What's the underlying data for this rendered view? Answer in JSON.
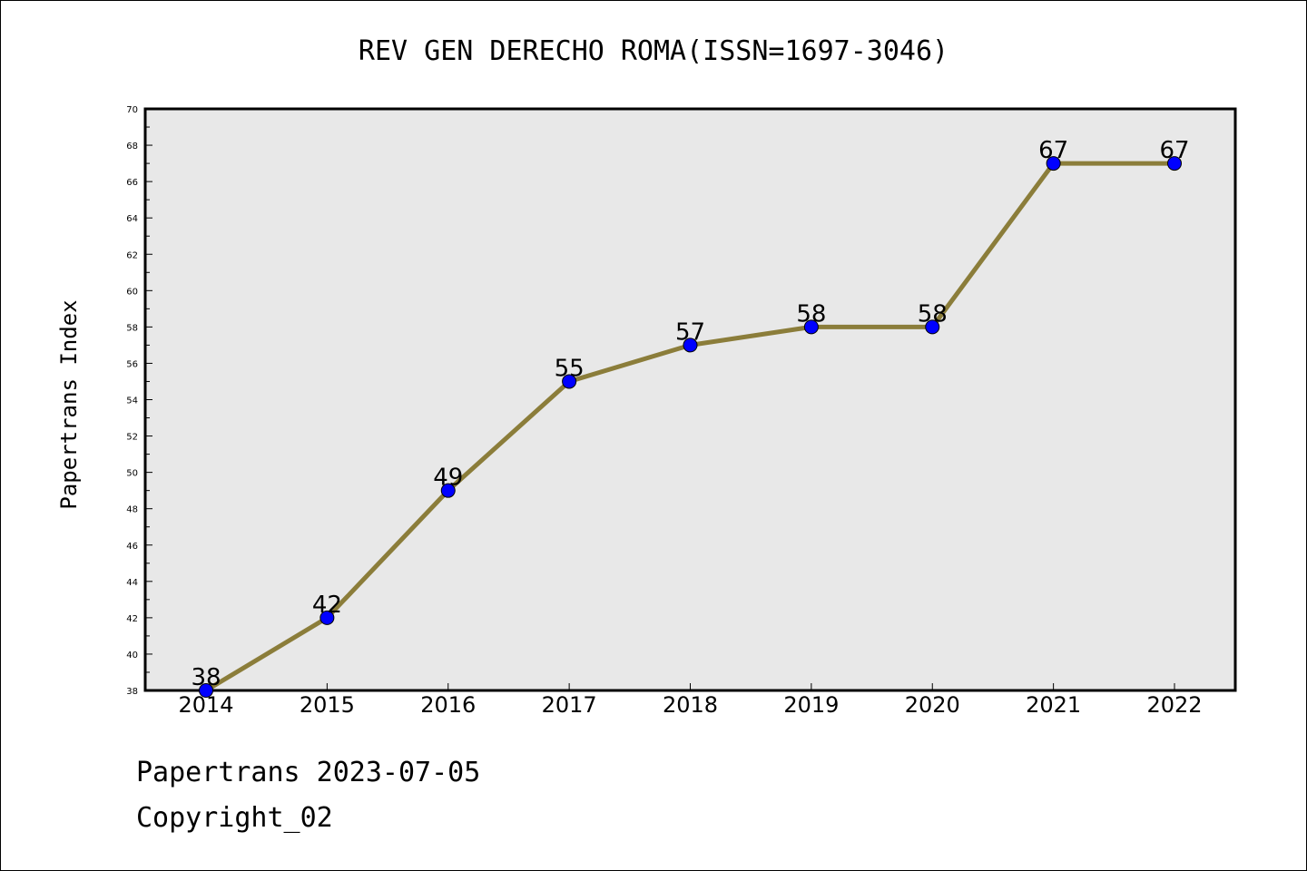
{
  "footer": {
    "date_line": "Papertrans 2023-07-05",
    "copyright_line": "Copyright_02"
  },
  "chart_data": {
    "type": "line",
    "title": "REV GEN DERECHO ROMA(ISSN=1697-3046)",
    "xlabel": "",
    "ylabel": "Papertrans Index",
    "categories": [
      "2014",
      "2015",
      "2016",
      "2017",
      "2018",
      "2019",
      "2020",
      "2021",
      "2022"
    ],
    "series": [
      {
        "values": [
          38,
          42,
          49,
          55,
          57,
          58,
          58,
          67,
          67
        ]
      }
    ],
    "ylim": [
      38,
      70
    ],
    "yticks": [
      38,
      40,
      42,
      44,
      46,
      48,
      50,
      52,
      54,
      56,
      58,
      60,
      62,
      64,
      66,
      68,
      70
    ],
    "grid": false,
    "legend": "none",
    "colors": {
      "line": "#8B7D3A",
      "marker": "#0000FF",
      "plot_background": "#E8E8E8"
    }
  }
}
